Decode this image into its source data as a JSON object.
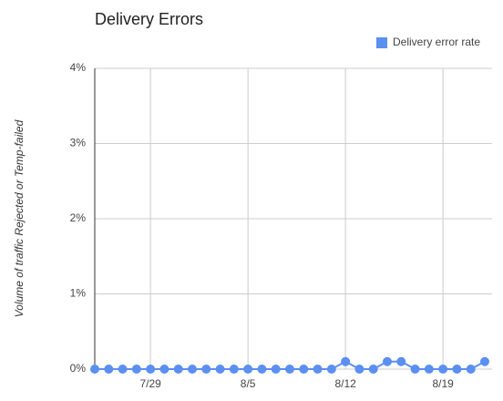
{
  "chart_data": {
    "type": "line",
    "title": "Delivery Errors",
    "y_label": "Volume of traffic Rejected or Temp-failed",
    "categories": [
      null,
      null,
      null,
      null,
      "7/29",
      null,
      null,
      null,
      null,
      null,
      null,
      "8/5",
      null,
      null,
      null,
      null,
      null,
      null,
      "8/12",
      null,
      null,
      null,
      null,
      null,
      null,
      "8/19",
      null,
      null,
      null
    ],
    "series": [
      {
        "name": "Delivery error rate",
        "color": "#5b8ff0",
        "values": [
          0,
          0,
          0,
          0,
          0,
          0,
          0,
          0,
          0,
          0,
          0,
          0,
          0,
          0,
          0,
          0,
          0,
          0,
          0.1,
          0,
          0,
          0.1,
          0.1,
          0,
          0,
          0,
          0,
          0,
          0.1
        ]
      }
    ],
    "ylim": [
      0,
      4
    ],
    "yticks": [
      {
        "value": 0,
        "label": "0%"
      },
      {
        "value": 1,
        "label": "1%"
      },
      {
        "value": 2,
        "label": "2%"
      },
      {
        "value": 3,
        "label": "3%"
      },
      {
        "value": 4,
        "label": "4%"
      }
    ],
    "grid": true,
    "legend": "top-right"
  }
}
